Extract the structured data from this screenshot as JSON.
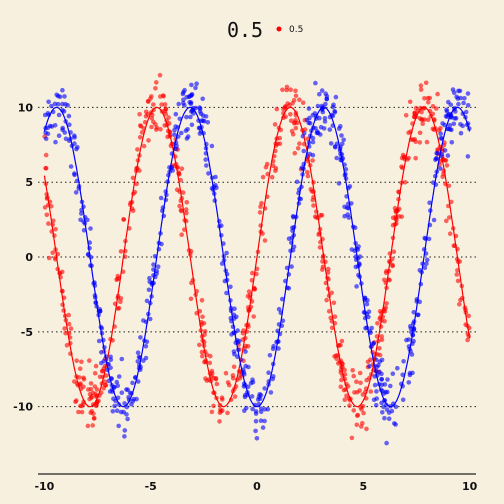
{
  "chart_data": {
    "type": "scatter",
    "title": "0.5",
    "legend": {
      "position": "top",
      "entries": [
        "0.5"
      ]
    },
    "xlim": [
      -10.3,
      10.3
    ],
    "ylim": [
      -14.5,
      13.5
    ],
    "x_ticks": [
      -10,
      -5,
      0,
      5,
      10
    ],
    "y_ticks": [
      -10,
      -5,
      0,
      5,
      10
    ],
    "grid": "horizontal-dotted",
    "series": [
      {
        "name": "0.5",
        "color": "#ff0000",
        "function": "10*sin(x)",
        "points_count": 700,
        "noise": 1.0,
        "has_fit_line": true
      },
      {
        "color": "#0000ff",
        "function": "10*sin(x - pi/2)",
        "points_count": 700,
        "noise": 1.0,
        "has_fit_line": true
      }
    ]
  }
}
